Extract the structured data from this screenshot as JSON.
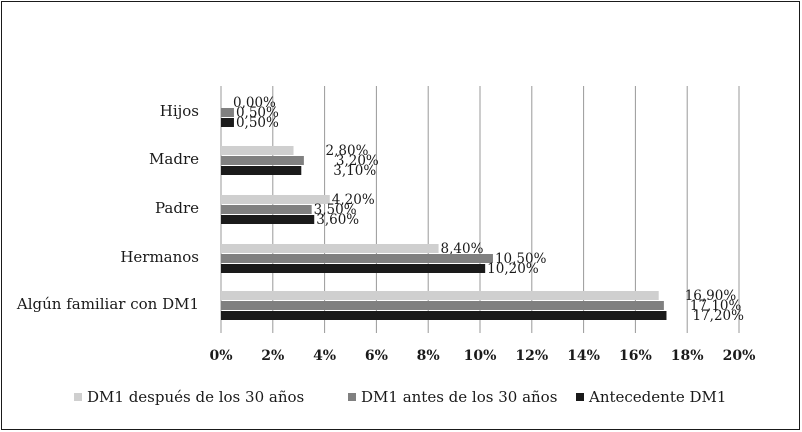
{
  "chart_data": {
    "type": "bar",
    "orientation": "horizontal",
    "categories": [
      "Hijos",
      "Madre",
      "Padre",
      "Hermanos",
      "Algún familiar con DM1"
    ],
    "series": [
      {
        "name": "DM1 después de los 30 años",
        "color": "#cfcfcf",
        "values": [
          0.0,
          2.8,
          4.2,
          8.4,
          16.9
        ],
        "labels": [
          "0,00%",
          "2,80%",
          "4,20%",
          "8,40%",
          "16,90%"
        ]
      },
      {
        "name": "DM1 antes de los 30 años",
        "color": "#808080",
        "values": [
          0.5,
          3.2,
          3.5,
          10.5,
          17.1
        ],
        "labels": [
          "0,50%",
          "3,20%",
          "3,50%",
          "10,50%",
          "17,10%"
        ]
      },
      {
        "name": "Antecedente DM1",
        "color": "#1a1a1a",
        "values": [
          0.5,
          3.1,
          3.6,
          10.2,
          17.2
        ],
        "labels": [
          "0,50%",
          "3,10%",
          "3,60%",
          "10,20%",
          "17,20%"
        ]
      }
    ],
    "xlim": [
      0,
      20
    ],
    "xticks": [
      0,
      2,
      4,
      6,
      8,
      10,
      12,
      14,
      16,
      18,
      20
    ],
    "xtick_labels": [
      "0%",
      "2%",
      "4%",
      "6%",
      "8%",
      "10%",
      "12%",
      "14%",
      "16%",
      "18%",
      "20%"
    ],
    "grid": true,
    "legend_position": "bottom"
  }
}
